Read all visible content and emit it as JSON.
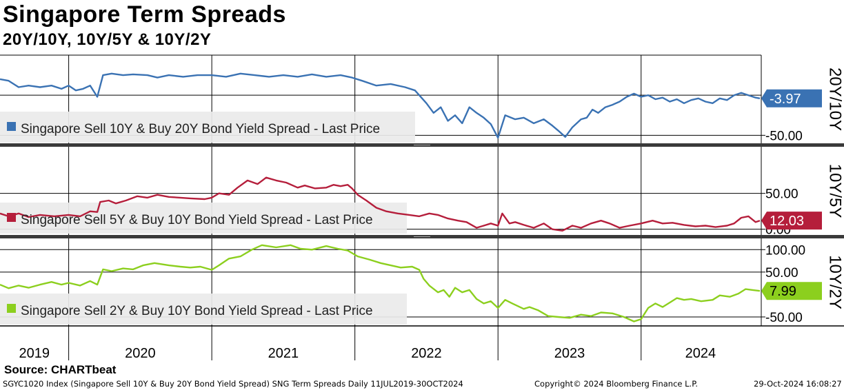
{
  "title": "Singapore Term Spreads",
  "subtitle": "20Y/10Y, 10Y/5Y & 10Y/2Y",
  "source": "Source: CHARTbeat",
  "footer": {
    "description": "SGYC1020 Index (Singapore Sell 10Y & Buy 20Y Bond Yield Spread) SNG Term Spreads  Daily 11JUL2019-30OCT2024",
    "copyright": "Copyright© 2024 Bloomberg Finance L.P.",
    "timestamp": "29-Oct-2024 16:08:27"
  },
  "colors": {
    "blue": "#3a72b3",
    "red": "#b51e3b",
    "red_light": "#d98a96",
    "green": "#8ccf1e",
    "grid": "#000000"
  },
  "chart_data": {
    "type": "line",
    "x_axis": {
      "tick_labels": [
        "2019",
        "2020",
        "2021",
        "2022",
        "2023",
        "2024"
      ],
      "year_boundaries": [
        2020,
        2021,
        2022,
        2023,
        2024
      ],
      "range": [
        2019.52,
        2024.83
      ]
    },
    "panels": [
      {
        "id": "20y10y",
        "label": "20Y/10Y",
        "legend": "Singapore Sell 10Y & Buy 20Y Bond Yield Spread - Last Price",
        "ylim": [
          -60,
          50
        ],
        "yticks": [
          -50.0
        ],
        "ytick_labels": [
          "-50.00"
        ],
        "last_value": -3.97,
        "last_label": "-3.97",
        "color_key": "blue",
        "series": [
          [
            2019.52,
            20
          ],
          [
            2019.58,
            18
          ],
          [
            2019.65,
            10
          ],
          [
            2019.72,
            12
          ],
          [
            2019.8,
            10
          ],
          [
            2019.88,
            12
          ],
          [
            2019.95,
            8
          ],
          [
            2020.0,
            12
          ],
          [
            2020.05,
            6
          ],
          [
            2020.1,
            8
          ],
          [
            2020.15,
            12
          ],
          [
            2020.2,
            -2
          ],
          [
            2020.24,
            25
          ],
          [
            2020.3,
            27
          ],
          [
            2020.38,
            25
          ],
          [
            2020.45,
            26
          ],
          [
            2020.55,
            25
          ],
          [
            2020.62,
            22
          ],
          [
            2020.7,
            25
          ],
          [
            2020.8,
            23
          ],
          [
            2020.9,
            25
          ],
          [
            2021.0,
            25
          ],
          [
            2021.1,
            23
          ],
          [
            2021.2,
            27
          ],
          [
            2021.3,
            25
          ],
          [
            2021.4,
            23
          ],
          [
            2021.5,
            25
          ],
          [
            2021.6,
            23
          ],
          [
            2021.7,
            26
          ],
          [
            2021.8,
            23
          ],
          [
            2021.9,
            25
          ],
          [
            2021.98,
            22
          ],
          [
            2022.05,
            18
          ],
          [
            2022.15,
            12
          ],
          [
            2022.25,
            14
          ],
          [
            2022.35,
            10
          ],
          [
            2022.42,
            6
          ],
          [
            2022.5,
            -10
          ],
          [
            2022.55,
            -22
          ],
          [
            2022.6,
            -15
          ],
          [
            2022.65,
            -32
          ],
          [
            2022.7,
            -25
          ],
          [
            2022.75,
            -35
          ],
          [
            2022.8,
            -15
          ],
          [
            2022.85,
            -22
          ],
          [
            2022.9,
            -28
          ],
          [
            2022.95,
            -36
          ],
          [
            2023.0,
            -53
          ],
          [
            2023.05,
            -25
          ],
          [
            2023.12,
            -30
          ],
          [
            2023.18,
            -28
          ],
          [
            2023.25,
            -35
          ],
          [
            2023.32,
            -30
          ],
          [
            2023.38,
            -38
          ],
          [
            2023.42,
            -44
          ],
          [
            2023.47,
            -52
          ],
          [
            2023.52,
            -40
          ],
          [
            2023.58,
            -30
          ],
          [
            2023.62,
            -28
          ],
          [
            2023.66,
            -18
          ],
          [
            2023.7,
            -22
          ],
          [
            2023.75,
            -15
          ],
          [
            2023.8,
            -12
          ],
          [
            2023.85,
            -8
          ],
          [
            2023.9,
            -2
          ],
          [
            2023.95,
            2
          ],
          [
            2024.0,
            -2
          ],
          [
            2024.05,
            0
          ],
          [
            2024.1,
            -5
          ],
          [
            2024.15,
            -3
          ],
          [
            2024.2,
            -8
          ],
          [
            2024.25,
            -5
          ],
          [
            2024.3,
            -10
          ],
          [
            2024.35,
            -6
          ],
          [
            2024.4,
            -4
          ],
          [
            2024.45,
            -8
          ],
          [
            2024.5,
            -10
          ],
          [
            2024.55,
            -4
          ],
          [
            2024.6,
            -6
          ],
          [
            2024.65,
            0
          ],
          [
            2024.7,
            3
          ],
          [
            2024.75,
            0
          ],
          [
            2024.8,
            -3
          ],
          [
            2024.83,
            -4
          ]
        ]
      },
      {
        "id": "10y5y",
        "label": "10Y/5Y",
        "legend": "Singapore Sell 5Y & Buy 10Y Bond Yield Spread - Last Price",
        "ylim": [
          -8,
          115
        ],
        "yticks": [
          50.0,
          0.0
        ],
        "ytick_labels": [
          "50.00",
          "0.00"
        ],
        "last_value": 12.03,
        "last_label": "12.03",
        "color_key": "red",
        "series": [
          [
            2019.52,
            22
          ],
          [
            2019.58,
            18
          ],
          [
            2019.65,
            22
          ],
          [
            2019.72,
            17
          ],
          [
            2019.8,
            20
          ],
          [
            2019.9,
            18
          ],
          [
            2020.0,
            20
          ],
          [
            2020.08,
            18
          ],
          [
            2020.15,
            25
          ],
          [
            2020.2,
            24
          ],
          [
            2020.22,
            38
          ],
          [
            2020.28,
            40
          ],
          [
            2020.33,
            36
          ],
          [
            2020.4,
            40
          ],
          [
            2020.48,
            46
          ],
          [
            2020.55,
            44
          ],
          [
            2020.62,
            48
          ],
          [
            2020.7,
            45
          ],
          [
            2020.78,
            44
          ],
          [
            2020.85,
            43
          ],
          [
            2020.95,
            42
          ],
          [
            2021.0,
            44
          ],
          [
            2021.05,
            50
          ],
          [
            2021.12,
            48
          ],
          [
            2021.18,
            58
          ],
          [
            2021.25,
            68
          ],
          [
            2021.32,
            63
          ],
          [
            2021.38,
            72
          ],
          [
            2021.45,
            68
          ],
          [
            2021.52,
            65
          ],
          [
            2021.6,
            58
          ],
          [
            2021.65,
            61
          ],
          [
            2021.72,
            57
          ],
          [
            2021.8,
            58
          ],
          [
            2021.85,
            62
          ],
          [
            2021.9,
            60
          ],
          [
            2021.95,
            62
          ],
          [
            2021.98,
            57
          ],
          [
            2022.02,
            48
          ],
          [
            2022.08,
            40
          ],
          [
            2022.15,
            30
          ],
          [
            2022.22,
            25
          ],
          [
            2022.3,
            22
          ],
          [
            2022.38,
            20
          ],
          [
            2022.45,
            18
          ],
          [
            2022.52,
            22
          ],
          [
            2022.58,
            20
          ],
          [
            2022.65,
            15
          ],
          [
            2022.72,
            12
          ],
          [
            2022.78,
            10
          ],
          [
            2022.85,
            2
          ],
          [
            2022.9,
            5
          ],
          [
            2022.95,
            8
          ],
          [
            2023.0,
            5
          ],
          [
            2023.03,
            22
          ],
          [
            2023.08,
            8
          ],
          [
            2023.12,
            10
          ],
          [
            2023.18,
            6
          ],
          [
            2023.25,
            2
          ],
          [
            2023.32,
            8
          ],
          [
            2023.38,
            0
          ],
          [
            2023.45,
            -2
          ],
          [
            2023.52,
            5
          ],
          [
            2023.58,
            2
          ],
          [
            2023.65,
            8
          ],
          [
            2023.72,
            12
          ],
          [
            2023.78,
            8
          ],
          [
            2023.85,
            2
          ],
          [
            2023.92,
            5
          ],
          [
            2024.0,
            8
          ],
          [
            2024.08,
            12
          ],
          [
            2024.15,
            8
          ],
          [
            2024.22,
            9
          ],
          [
            2024.3,
            6
          ],
          [
            2024.38,
            4
          ],
          [
            2024.45,
            5
          ],
          [
            2024.52,
            3
          ],
          [
            2024.6,
            5
          ],
          [
            2024.65,
            8
          ],
          [
            2024.7,
            16
          ],
          [
            2024.75,
            18
          ],
          [
            2024.8,
            10
          ],
          [
            2024.83,
            12
          ]
        ]
      },
      {
        "id": "10y2y",
        "label": "10Y/2Y",
        "legend": "Singapore Sell 2Y & Buy 10Y Bond Yield Spread - Last Price",
        "ylim": [
          -70,
          125
        ],
        "yticks": [
          100.0,
          50.0,
          -50.0
        ],
        "ytick_labels": [
          "100.00",
          "50.00",
          "-50.00"
        ],
        "last_value": 7.99,
        "last_label": "7.99",
        "color_key": "green",
        "series": [
          [
            2019.52,
            22
          ],
          [
            2019.58,
            14
          ],
          [
            2019.65,
            20
          ],
          [
            2019.72,
            15
          ],
          [
            2019.8,
            22
          ],
          [
            2019.88,
            28
          ],
          [
            2019.95,
            22
          ],
          [
            2020.0,
            26
          ],
          [
            2020.08,
            20
          ],
          [
            2020.15,
            30
          ],
          [
            2020.2,
            22
          ],
          [
            2020.24,
            56
          ],
          [
            2020.3,
            52
          ],
          [
            2020.38,
            58
          ],
          [
            2020.45,
            56
          ],
          [
            2020.52,
            65
          ],
          [
            2020.6,
            70
          ],
          [
            2020.7,
            65
          ],
          [
            2020.78,
            62
          ],
          [
            2020.85,
            60
          ],
          [
            2020.92,
            62
          ],
          [
            2021.0,
            55
          ],
          [
            2021.05,
            65
          ],
          [
            2021.12,
            80
          ],
          [
            2021.2,
            85
          ],
          [
            2021.28,
            100
          ],
          [
            2021.35,
            110
          ],
          [
            2021.45,
            105
          ],
          [
            2021.55,
            110
          ],
          [
            2021.62,
            102
          ],
          [
            2021.7,
            100
          ],
          [
            2021.8,
            108
          ],
          [
            2021.88,
            102
          ],
          [
            2021.95,
            98
          ],
          [
            2022.02,
            85
          ],
          [
            2022.1,
            78
          ],
          [
            2022.18,
            70
          ],
          [
            2022.25,
            65
          ],
          [
            2022.32,
            60
          ],
          [
            2022.4,
            62
          ],
          [
            2022.45,
            55
          ],
          [
            2022.48,
            35
          ],
          [
            2022.52,
            20
          ],
          [
            2022.58,
            5
          ],
          [
            2022.62,
            10
          ],
          [
            2022.66,
            -5
          ],
          [
            2022.7,
            15
          ],
          [
            2022.75,
            5
          ],
          [
            2022.8,
            10
          ],
          [
            2022.85,
            -10
          ],
          [
            2022.9,
            -20
          ],
          [
            2022.95,
            -15
          ],
          [
            2023.0,
            -30
          ],
          [
            2023.05,
            -12
          ],
          [
            2023.1,
            -20
          ],
          [
            2023.18,
            -32
          ],
          [
            2023.22,
            -28
          ],
          [
            2023.28,
            -35
          ],
          [
            2023.35,
            -48
          ],
          [
            2023.42,
            -50
          ],
          [
            2023.5,
            -52
          ],
          [
            2023.58,
            -45
          ],
          [
            2023.65,
            -48
          ],
          [
            2023.72,
            -40
          ],
          [
            2023.8,
            -42
          ],
          [
            2023.88,
            -50
          ],
          [
            2023.95,
            -60
          ],
          [
            2024.0,
            -55
          ],
          [
            2024.05,
            -30
          ],
          [
            2024.1,
            -20
          ],
          [
            2024.15,
            -28
          ],
          [
            2024.2,
            -18
          ],
          [
            2024.25,
            -8
          ],
          [
            2024.3,
            -12
          ],
          [
            2024.35,
            -10
          ],
          [
            2024.42,
            -15
          ],
          [
            2024.5,
            -12
          ],
          [
            2024.55,
            -2
          ],
          [
            2024.62,
            -5
          ],
          [
            2024.68,
            2
          ],
          [
            2024.73,
            12
          ],
          [
            2024.78,
            10
          ],
          [
            2024.83,
            8
          ]
        ]
      }
    ]
  }
}
